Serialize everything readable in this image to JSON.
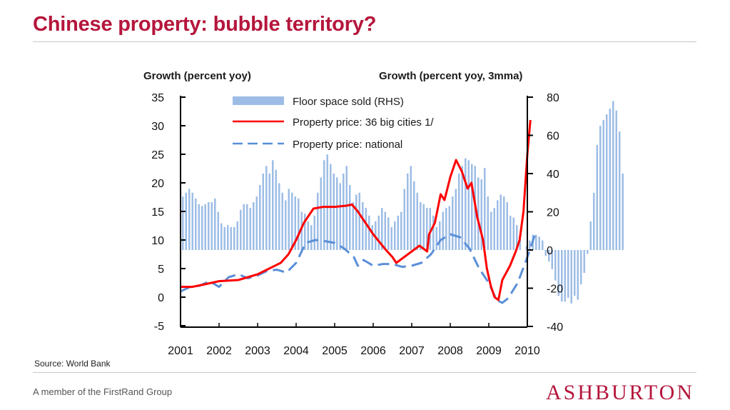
{
  "slide": {
    "title": "Chinese property: bubble territory?",
    "source": "Source: World Bank",
    "footer": "A member of the FirstRand Group",
    "brand": "ASHBURTON"
  },
  "colors": {
    "title": "#b5163c",
    "floor_space": "#9dbde6",
    "price_36": "#ff0000",
    "price_national": "#5b8fd8",
    "brand": "#b5163c"
  },
  "chart_data": {
    "type": "bar+line",
    "title": "",
    "left_axis_title": "Growth (percent yoy)",
    "right_axis_title": "Growth (percent yoy, 3mma)",
    "left_ylim": [
      -5,
      35
    ],
    "left_ticks": [
      "35",
      "30",
      "25",
      "20",
      "15",
      "10",
      "5",
      "0",
      "-5"
    ],
    "right_ylim": [
      -40,
      80
    ],
    "right_ticks": [
      "80",
      "60",
      "40",
      "20",
      "0",
      "-20",
      "-40"
    ],
    "x_ticks": [
      "2001",
      "2002",
      "2003",
      "2004",
      "2005",
      "2006",
      "2007",
      "2008",
      "2009",
      "2010"
    ],
    "grid": false,
    "legend_position": "top",
    "series": [
      {
        "name": "Floor space sold (RHS)",
        "kind": "bar",
        "axis": "right",
        "start": 2001.0,
        "step": 0.0833333,
        "values": [
          28,
          30,
          32,
          30,
          27,
          24,
          23,
          24,
          25,
          25,
          27,
          20,
          14,
          12,
          13,
          12,
          12,
          15,
          21,
          24,
          24,
          22,
          25,
          28,
          34,
          40,
          44,
          40,
          47,
          42,
          35,
          30,
          26,
          32,
          30,
          28,
          27,
          20,
          19,
          15,
          13,
          18,
          30,
          38,
          47,
          50,
          45,
          40,
          38,
          35,
          40,
          44,
          34,
          25,
          29,
          30,
          25,
          22,
          18,
          13,
          15,
          18,
          22,
          20,
          17,
          12,
          15,
          18,
          20,
          32,
          40,
          44,
          36,
          30,
          25,
          24,
          22,
          22,
          18,
          12,
          15,
          20,
          22,
          23,
          28,
          32,
          40,
          44,
          48,
          47,
          45,
          44,
          38,
          37,
          43,
          28,
          20,
          22,
          26,
          29,
          28,
          25,
          18,
          17,
          13,
          7,
          0,
          2,
          5,
          8,
          8,
          7,
          5,
          -3,
          -6,
          -10,
          -16,
          -24,
          -27,
          -27,
          -25,
          -28,
          -24,
          -26,
          -18,
          -12,
          -2,
          15,
          30,
          55,
          65,
          68,
          71,
          74,
          78,
          73,
          62,
          40
        ]
      },
      {
        "name": "Property price: 36 big cities 1/",
        "kind": "line",
        "axis": "left",
        "points": [
          [
            2001.0,
            1.8
          ],
          [
            2001.3,
            1.8
          ],
          [
            2001.6,
            2.2
          ],
          [
            2002.0,
            2.8
          ],
          [
            2002.5,
            3.0
          ],
          [
            2003.0,
            4.0
          ],
          [
            2003.3,
            5.0
          ],
          [
            2003.6,
            6.0
          ],
          [
            2003.8,
            7.5
          ],
          [
            2004.0,
            10.0
          ],
          [
            2004.2,
            13.0
          ],
          [
            2004.45,
            15.5
          ],
          [
            2004.7,
            15.8
          ],
          [
            2005.0,
            15.8
          ],
          [
            2005.3,
            16.0
          ],
          [
            2005.45,
            16.2
          ],
          [
            2005.6,
            15.0
          ],
          [
            2005.8,
            13.0
          ],
          [
            2006.0,
            11.0
          ],
          [
            2006.3,
            8.5
          ],
          [
            2006.5,
            7.0
          ],
          [
            2006.6,
            6.0
          ],
          [
            2006.9,
            7.5
          ],
          [
            2007.2,
            9.0
          ],
          [
            2007.4,
            8.0
          ],
          [
            2007.45,
            11.0
          ],
          [
            2007.6,
            13.0
          ],
          [
            2007.75,
            18.0
          ],
          [
            2007.85,
            17.0
          ],
          [
            2008.0,
            21.0
          ],
          [
            2008.15,
            24.0
          ],
          [
            2008.3,
            22.0
          ],
          [
            2008.45,
            19.0
          ],
          [
            2008.55,
            20.0
          ],
          [
            2008.7,
            14.0
          ],
          [
            2008.85,
            10.0
          ],
          [
            2008.95,
            5.0
          ],
          [
            2009.05,
            2.0
          ],
          [
            2009.15,
            0.0
          ],
          [
            2009.25,
            -0.5
          ],
          [
            2009.35,
            3.0
          ],
          [
            2009.55,
            5.5
          ],
          [
            2009.7,
            8.0
          ],
          [
            2009.8,
            10.0
          ],
          [
            2009.9,
            15.0
          ],
          [
            2010.0,
            25.0
          ],
          [
            2010.08,
            31.0
          ]
        ]
      },
      {
        "name": "Property price: national",
        "kind": "line",
        "axis": "left",
        "dashed": true,
        "points": [
          [
            2001.0,
            1.0
          ],
          [
            2001.25,
            1.8
          ],
          [
            2001.5,
            2.0
          ],
          [
            2001.75,
            2.8
          ],
          [
            2002.0,
            1.8
          ],
          [
            2002.25,
            3.5
          ],
          [
            2002.5,
            4.0
          ],
          [
            2002.75,
            3.3
          ],
          [
            2003.0,
            3.8
          ],
          [
            2003.25,
            4.6
          ],
          [
            2003.5,
            4.8
          ],
          [
            2003.75,
            4.3
          ],
          [
            2004.0,
            6.0
          ],
          [
            2004.25,
            9.5
          ],
          [
            2004.5,
            10.0
          ],
          [
            2004.75,
            9.8
          ],
          [
            2005.0,
            9.5
          ],
          [
            2005.25,
            8.5
          ],
          [
            2005.5,
            7.0
          ],
          [
            2005.6,
            5.5
          ],
          [
            2005.75,
            6.5
          ],
          [
            2006.0,
            5.5
          ],
          [
            2006.25,
            5.8
          ],
          [
            2006.5,
            5.8
          ],
          [
            2006.75,
            5.3
          ],
          [
            2007.0,
            5.5
          ],
          [
            2007.25,
            6.0
          ],
          [
            2007.5,
            7.5
          ],
          [
            2007.75,
            10.0
          ],
          [
            2008.0,
            11.0
          ],
          [
            2008.25,
            10.5
          ],
          [
            2008.5,
            8.5
          ],
          [
            2008.75,
            5.0
          ],
          [
            2009.0,
            2.5
          ],
          [
            2009.2,
            -0.5
          ],
          [
            2009.35,
            -1.0
          ],
          [
            2009.5,
            -0.2
          ],
          [
            2009.75,
            2.5
          ],
          [
            2010.0,
            7.0
          ],
          [
            2010.2,
            11.0
          ]
        ]
      }
    ]
  }
}
